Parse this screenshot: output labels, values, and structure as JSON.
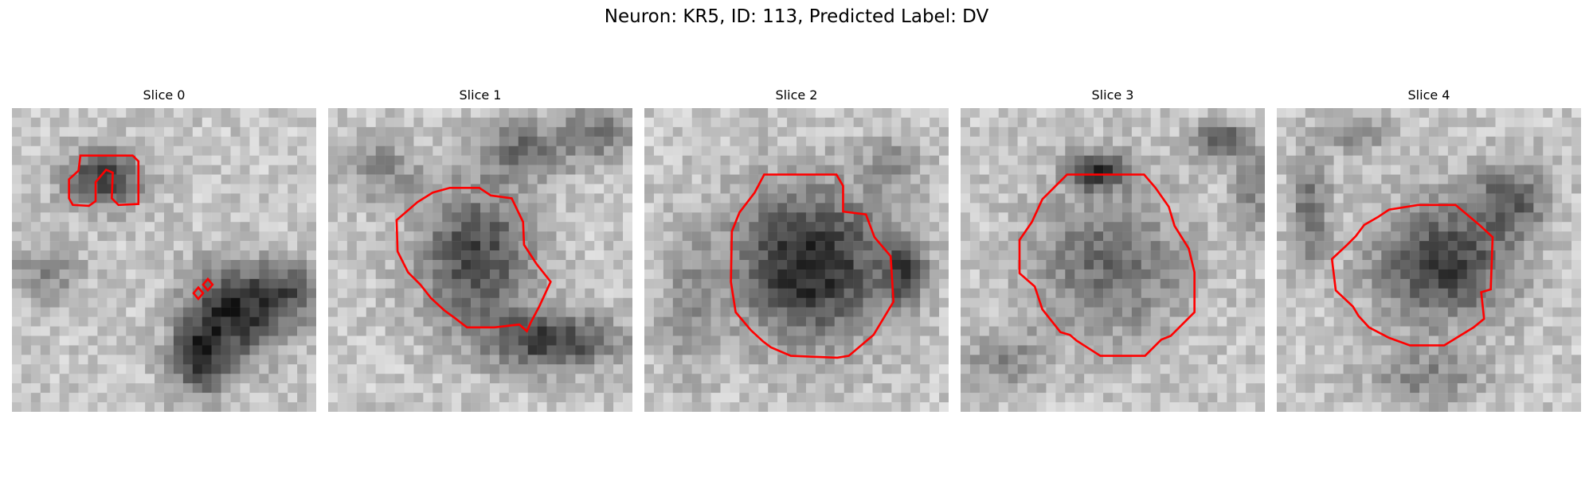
{
  "figure": {
    "title": "Neuron: KR5, ID: 113, Predicted Label: DV"
  },
  "colors": {
    "contour": "#ff0000",
    "background": "#ffffff"
  },
  "panels": [
    {
      "title": "Slice 0"
    },
    {
      "title": "Slice 1"
    },
    {
      "title": "Slice 2"
    },
    {
      "title": "Slice 3"
    },
    {
      "title": "Slice 4"
    }
  ]
}
